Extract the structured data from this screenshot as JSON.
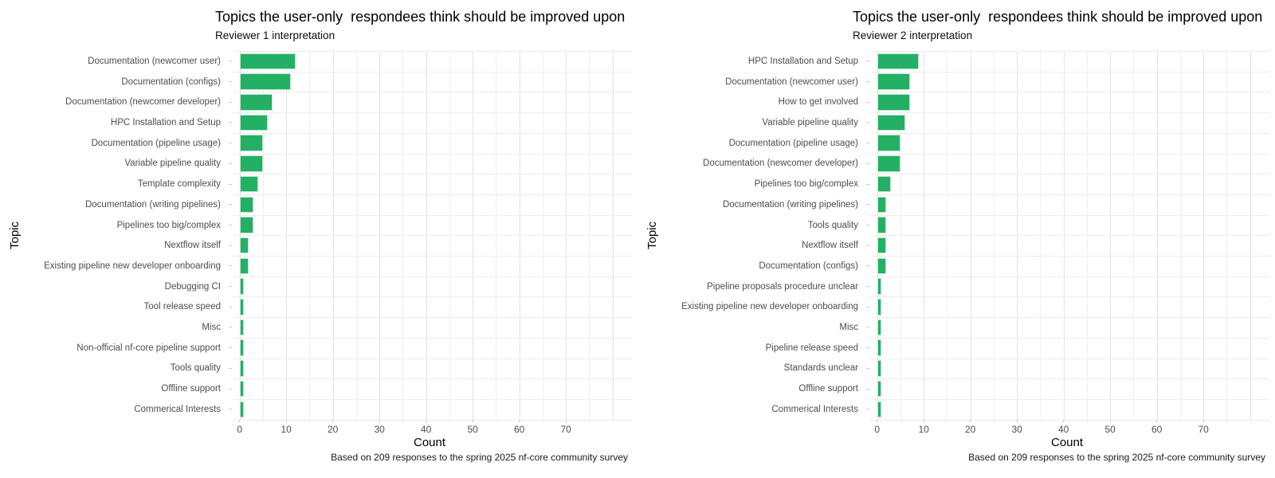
{
  "figure": {
    "background": "#ffffff",
    "caption": "Based on 209 responses to the spring 2025 nf-core community survey"
  },
  "chart_data": [
    {
      "type": "bar",
      "orientation": "horizontal",
      "title": "Topics the user-only  respondees think should be improved upon",
      "subtitle": "Reviewer 1 interpretation",
      "xlabel": "Count",
      "ylabel": "Topic",
      "caption": "Based on 209 responses to the spring 2025 nf-core community survey",
      "bar_color": "#24B064",
      "grid": true,
      "legend": false,
      "xlim": [
        0,
        80
      ],
      "x_major_ticks": [
        0,
        10,
        20,
        30,
        40,
        50,
        60,
        70
      ],
      "categories": [
        "Documentation (newcomer user)",
        "Documentation (configs)",
        "Documentation (newcomer developer)",
        "HPC Installation and Setup",
        "Documentation (pipeline usage)",
        "Variable pipeline quality",
        "Template complexity",
        "Documentation (writing pipelines)",
        "Pipelines too big/complex",
        "Nextflow itself",
        "Existing pipeline new developer onboarding",
        "Debugging CI",
        "Tool release speed",
        "Misc",
        "Non-official nf-core pipeline support",
        "Tools quality",
        "Offline support",
        "Commerical Interests"
      ],
      "values": [
        12,
        11,
        7,
        6,
        5,
        5,
        4,
        3,
        3,
        2,
        2,
        1,
        1,
        1,
        1,
        1,
        1,
        1
      ]
    },
    {
      "type": "bar",
      "orientation": "horizontal",
      "title": "Topics the user-only  respondees think should be improved upon",
      "subtitle": "Reviewer 2 interpretation",
      "xlabel": "Count",
      "ylabel": "Topic",
      "caption": "Based on 209 responses to the spring 2025 nf-core community survey",
      "bar_color": "#24B064",
      "grid": true,
      "legend": false,
      "xlim": [
        0,
        80
      ],
      "x_major_ticks": [
        0,
        10,
        20,
        30,
        40,
        50,
        60,
        70
      ],
      "categories": [
        "HPC Installation and Setup",
        "Documentation (newcomer user)",
        "How to get involved",
        "Variable pipeline quality",
        "Documentation (pipeline usage)",
        "Documentation (newcomer developer)",
        "Pipelines too big/complex",
        "Documentation (writing pipelines)",
        "Tools quality",
        "Nextflow itself",
        "Documentation (configs)",
        "Pipeline proposals procedure unclear",
        "Existing pipeline new developer onboarding",
        "Misc",
        "Pipeline release speed",
        "Standards unclear",
        "Offline support",
        "Commerical Interests"
      ],
      "values": [
        9,
        7,
        7,
        6,
        5,
        5,
        3,
        2,
        2,
        2,
        2,
        1,
        1,
        1,
        1,
        1,
        1,
        1
      ]
    }
  ]
}
